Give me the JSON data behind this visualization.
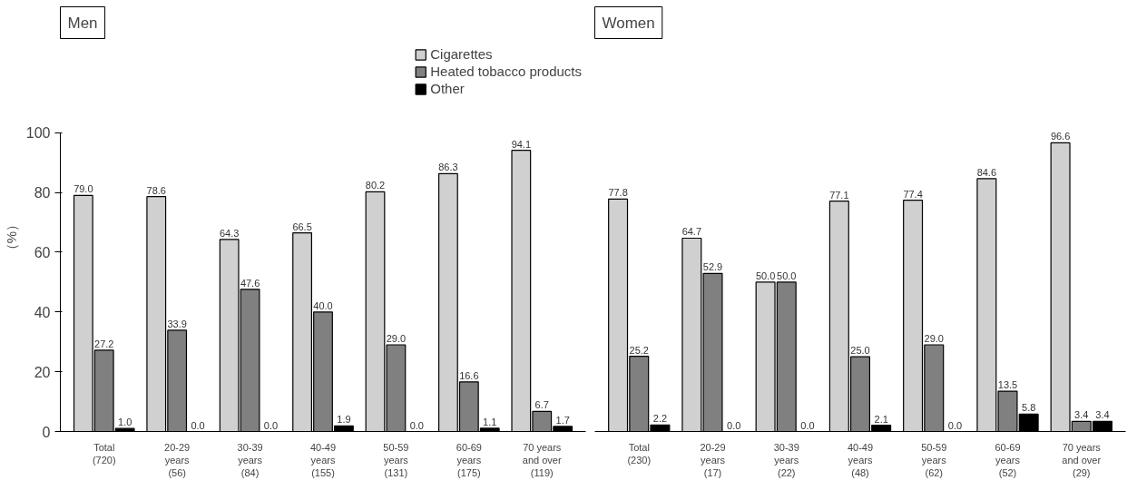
{
  "chart_data": [
    {
      "type": "bar",
      "title": "Men",
      "ylabel": "（%）",
      "categories": [
        "Total\n(720)",
        "20-29\nyears\n(56)",
        "30-39\nyears\n(84)",
        "40-49\nyears\n(155)",
        "50-59\nyears\n(131)",
        "60-69\nyears\n(175)",
        "70 years\nand over\n(119)"
      ],
      "series": [
        {
          "name": "Cigarettes",
          "color": "#d0d0d0",
          "values": [
            79.0,
            78.6,
            64.3,
            66.5,
            80.2,
            86.3,
            94.1
          ],
          "value_labels": [
            "79.0",
            "78.6",
            "64.3",
            "66.5",
            "80.2",
            "86.3",
            "94.1"
          ]
        },
        {
          "name": "Heated tobacco products",
          "color": "#808080",
          "values": [
            27.2,
            33.9,
            47.6,
            40.0,
            29.0,
            16.6,
            6.7
          ],
          "value_labels": [
            "27.2",
            "33.9",
            "47.6",
            "40.0",
            "29.0",
            "16.6",
            "6.7"
          ]
        },
        {
          "name": "Other",
          "color": "#000000",
          "values": [
            1.0,
            0.0,
            0.0,
            1.9,
            0.0,
            1.1,
            1.7
          ],
          "value_labels": [
            "1.0",
            "0.0",
            "0.0",
            "1.9",
            "0.0",
            "1.1",
            "1.7"
          ]
        }
      ],
      "ylim": [
        0,
        100
      ],
      "yticks": [
        0,
        20,
        40,
        60,
        80,
        100
      ],
      "grid": false,
      "legend": "top right"
    },
    {
      "type": "bar",
      "title": "Women",
      "categories": [
        "Total\n(230)",
        "20-29\nyears\n(17)",
        "30-39\nyears\n(22)",
        "40-49\nyears\n(48)",
        "50-59\nyears\n(62)",
        "60-69\nyears\n(52)",
        "70 years\nand over\n(29)"
      ],
      "series": [
        {
          "color": "#d0d0d0",
          "values": [
            77.8,
            64.7,
            50.0,
            77.1,
            77.4,
            84.6,
            96.6
          ],
          "value_labels": [
            "77.8",
            "64.7",
            "50.0",
            "77.1",
            "77.4",
            "84.6",
            "96.6"
          ]
        },
        {
          "color": "#808080",
          "values": [
            25.2,
            52.9,
            50.0,
            25.0,
            29.0,
            13.5,
            3.4
          ],
          "value_labels": [
            "25.2",
            "52.9",
            "50.0",
            "25.0",
            "29.0",
            "13.5",
            "3.4"
          ]
        },
        {
          "color": "#000000",
          "values": [
            2.2,
            0.0,
            0.0,
            2.1,
            0.0,
            5.8,
            3.4
          ],
          "value_labels": [
            "2.2",
            "0.0",
            "0.0",
            "2.1",
            "0.0",
            "5.8",
            "3.4"
          ]
        }
      ],
      "tick_labels": "x",
      "grid": false
    }
  ]
}
